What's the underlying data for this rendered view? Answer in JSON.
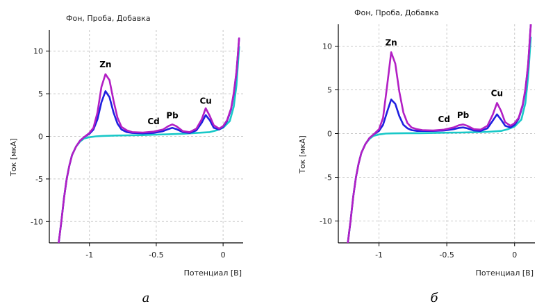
{
  "chart_data": [
    {
      "type": "line",
      "title": "Фон, Проба, Добавка",
      "xlabel": "Потенциал [В]",
      "ylabel": "Ток [мкА]",
      "caption": "а",
      "xlim": [
        -1.3,
        0.15
      ],
      "ylim": [
        -12.5,
        12.5
      ],
      "xticks": [
        -1,
        -0.5,
        0
      ],
      "xtick_labels": [
        "-1",
        "-0.5",
        "0"
      ],
      "yticks": [
        -10,
        -5,
        0,
        5,
        10
      ],
      "ytick_labels": [
        "-10",
        "-5",
        "0",
        "5",
        "10"
      ],
      "grid": true,
      "colors": {
        "background": "#19c8c8",
        "sample": "#1f1fe0",
        "addition": "#b21fc4"
      },
      "peaks": [
        {
          "label": "Zn",
          "x": -0.88,
          "y": 7.3
        },
        {
          "label": "Cd",
          "x": -0.52,
          "y": 0.6
        },
        {
          "label": "Pb",
          "x": -0.38,
          "y": 1.3
        },
        {
          "label": "Cu",
          "x": -0.13,
          "y": 3.0
        }
      ],
      "series": [
        {
          "key": "background",
          "x": [
            -1.23,
            -1.21,
            -1.19,
            -1.17,
            -1.15,
            -1.13,
            -1.1,
            -1.07,
            -1.04,
            -1.0,
            -0.95,
            -0.9,
            -0.8,
            -0.7,
            -0.6,
            -0.5,
            -0.4,
            -0.3,
            -0.2,
            -0.1,
            -0.05,
            0.0,
            0.05,
            0.08,
            0.1,
            0.12
          ],
          "y": [
            -12.5,
            -10.0,
            -7.2,
            -5.0,
            -3.4,
            -2.2,
            -1.2,
            -0.6,
            -0.25,
            -0.1,
            0.0,
            0.05,
            0.1,
            0.12,
            0.15,
            0.2,
            0.25,
            0.3,
            0.4,
            0.5,
            0.7,
            1.0,
            1.8,
            3.5,
            6.0,
            10.5
          ]
        },
        {
          "key": "sample",
          "x": [
            -1.23,
            -1.21,
            -1.19,
            -1.17,
            -1.15,
            -1.13,
            -1.1,
            -1.07,
            -1.04,
            -1.0,
            -0.97,
            -0.94,
            -0.91,
            -0.88,
            -0.85,
            -0.82,
            -0.79,
            -0.76,
            -0.72,
            -0.68,
            -0.6,
            -0.52,
            -0.45,
            -0.41,
            -0.38,
            -0.35,
            -0.3,
            -0.25,
            -0.2,
            -0.16,
            -0.13,
            -0.1,
            -0.07,
            -0.03,
            0.0,
            0.03,
            0.06,
            0.08,
            0.1,
            0.12
          ],
          "y": [
            -12.5,
            -10.0,
            -7.2,
            -5.0,
            -3.4,
            -2.2,
            -1.2,
            -0.5,
            -0.1,
            0.3,
            0.8,
            2.0,
            4.0,
            5.3,
            4.6,
            2.8,
            1.5,
            0.8,
            0.5,
            0.4,
            0.35,
            0.4,
            0.6,
            0.85,
            1.0,
            0.85,
            0.5,
            0.4,
            0.7,
            1.6,
            2.5,
            1.9,
            1.0,
            0.8,
            1.1,
            1.8,
            3.2,
            5.0,
            7.5,
            11.5
          ]
        },
        {
          "key": "addition",
          "x": [
            -1.23,
            -1.21,
            -1.19,
            -1.17,
            -1.15,
            -1.13,
            -1.1,
            -1.07,
            -1.04,
            -1.0,
            -0.97,
            -0.94,
            -0.91,
            -0.88,
            -0.85,
            -0.82,
            -0.79,
            -0.76,
            -0.72,
            -0.68,
            -0.6,
            -0.52,
            -0.45,
            -0.41,
            -0.38,
            -0.35,
            -0.3,
            -0.25,
            -0.2,
            -0.16,
            -0.13,
            -0.1,
            -0.07,
            -0.03,
            0.0,
            0.03,
            0.06,
            0.08,
            0.1,
            0.12
          ],
          "y": [
            -12.5,
            -10.0,
            -7.2,
            -5.0,
            -3.4,
            -2.2,
            -1.2,
            -0.5,
            -0.1,
            0.4,
            1.0,
            2.8,
            5.8,
            7.3,
            6.6,
            4.2,
            2.2,
            1.1,
            0.7,
            0.5,
            0.45,
            0.55,
            0.8,
            1.2,
            1.4,
            1.2,
            0.6,
            0.5,
            0.9,
            2.0,
            3.3,
            2.4,
            1.3,
            0.9,
            1.2,
            1.9,
            3.3,
            5.1,
            7.6,
            11.5
          ]
        }
      ]
    },
    {
      "type": "line",
      "title": "Фон, Проба, Добавка",
      "xlabel": "Потенциал [В]",
      "ylabel": "Ток [мкА]",
      "caption": "б",
      "xlim": [
        -1.3,
        0.15
      ],
      "ylim": [
        -12.5,
        12.5
      ],
      "xticks": [
        -1,
        -0.5,
        0
      ],
      "xtick_labels": [
        "-1",
        "-0.5",
        "0"
      ],
      "yticks": [
        -10,
        -5,
        0,
        5,
        10
      ],
      "ytick_labels": [
        "-10",
        "-5",
        "0",
        "5",
        "10"
      ],
      "grid": true,
      "colors": {
        "background": "#19c8c8",
        "sample": "#1f1fe0",
        "addition": "#b21fc4"
      },
      "peaks": [
        {
          "label": "Zn",
          "x": -0.91,
          "y": 9.3
        },
        {
          "label": "Cd",
          "x": -0.52,
          "y": 0.5
        },
        {
          "label": "Pb",
          "x": -0.38,
          "y": 1.0
        },
        {
          "label": "Cu",
          "x": -0.13,
          "y": 3.5
        }
      ],
      "series": [
        {
          "key": "background",
          "x": [
            -1.23,
            -1.21,
            -1.19,
            -1.17,
            -1.15,
            -1.13,
            -1.1,
            -1.07,
            -1.04,
            -1.0,
            -0.95,
            -0.9,
            -0.8,
            -0.7,
            -0.6,
            -0.5,
            -0.4,
            -0.3,
            -0.2,
            -0.1,
            -0.05,
            0.0,
            0.05,
            0.08,
            0.1,
            0.12
          ],
          "y": [
            -12.5,
            -10.0,
            -7.2,
            -5.0,
            -3.4,
            -2.2,
            -1.2,
            -0.6,
            -0.25,
            -0.1,
            0.0,
            0.02,
            0.05,
            0.05,
            0.07,
            0.1,
            0.12,
            0.15,
            0.2,
            0.3,
            0.5,
            0.8,
            1.6,
            3.5,
            6.5,
            11.0
          ]
        },
        {
          "key": "sample",
          "x": [
            -1.23,
            -1.21,
            -1.19,
            -1.17,
            -1.15,
            -1.13,
            -1.1,
            -1.07,
            -1.04,
            -1.0,
            -0.97,
            -0.94,
            -0.91,
            -0.88,
            -0.85,
            -0.82,
            -0.79,
            -0.76,
            -0.72,
            -0.68,
            -0.6,
            -0.52,
            -0.45,
            -0.41,
            -0.38,
            -0.35,
            -0.3,
            -0.25,
            -0.2,
            -0.16,
            -0.13,
            -0.1,
            -0.07,
            -0.03,
            0.0,
            0.03,
            0.06,
            0.08,
            0.1,
            0.12
          ],
          "y": [
            -12.5,
            -10.0,
            -7.2,
            -5.0,
            -3.4,
            -2.2,
            -1.2,
            -0.5,
            -0.1,
            0.3,
            1.0,
            2.5,
            3.9,
            3.4,
            2.0,
            1.0,
            0.6,
            0.4,
            0.3,
            0.3,
            0.3,
            0.35,
            0.5,
            0.65,
            0.7,
            0.6,
            0.35,
            0.3,
            0.6,
            1.5,
            2.2,
            1.6,
            0.9,
            0.7,
            1.0,
            1.7,
            3.2,
            5.0,
            7.8,
            12.5
          ]
        },
        {
          "key": "addition",
          "x": [
            -1.23,
            -1.21,
            -1.19,
            -1.17,
            -1.15,
            -1.13,
            -1.1,
            -1.07,
            -1.04,
            -1.0,
            -0.97,
            -0.94,
            -0.91,
            -0.88,
            -0.85,
            -0.82,
            -0.79,
            -0.76,
            -0.72,
            -0.68,
            -0.6,
            -0.52,
            -0.45,
            -0.41,
            -0.38,
            -0.35,
            -0.3,
            -0.25,
            -0.2,
            -0.16,
            -0.13,
            -0.1,
            -0.07,
            -0.03,
            0.0,
            0.03,
            0.06,
            0.08,
            0.1,
            0.12
          ],
          "y": [
            -12.5,
            -10.0,
            -7.2,
            -5.0,
            -3.4,
            -2.2,
            -1.2,
            -0.5,
            -0.1,
            0.5,
            1.8,
            5.5,
            9.3,
            8.0,
            4.8,
            2.4,
            1.2,
            0.7,
            0.5,
            0.4,
            0.35,
            0.45,
            0.7,
            0.95,
            1.05,
            0.9,
            0.5,
            0.45,
            0.9,
            2.2,
            3.5,
            2.6,
            1.3,
            0.9,
            1.2,
            1.8,
            3.3,
            5.1,
            7.9,
            12.5
          ]
        }
      ]
    }
  ]
}
